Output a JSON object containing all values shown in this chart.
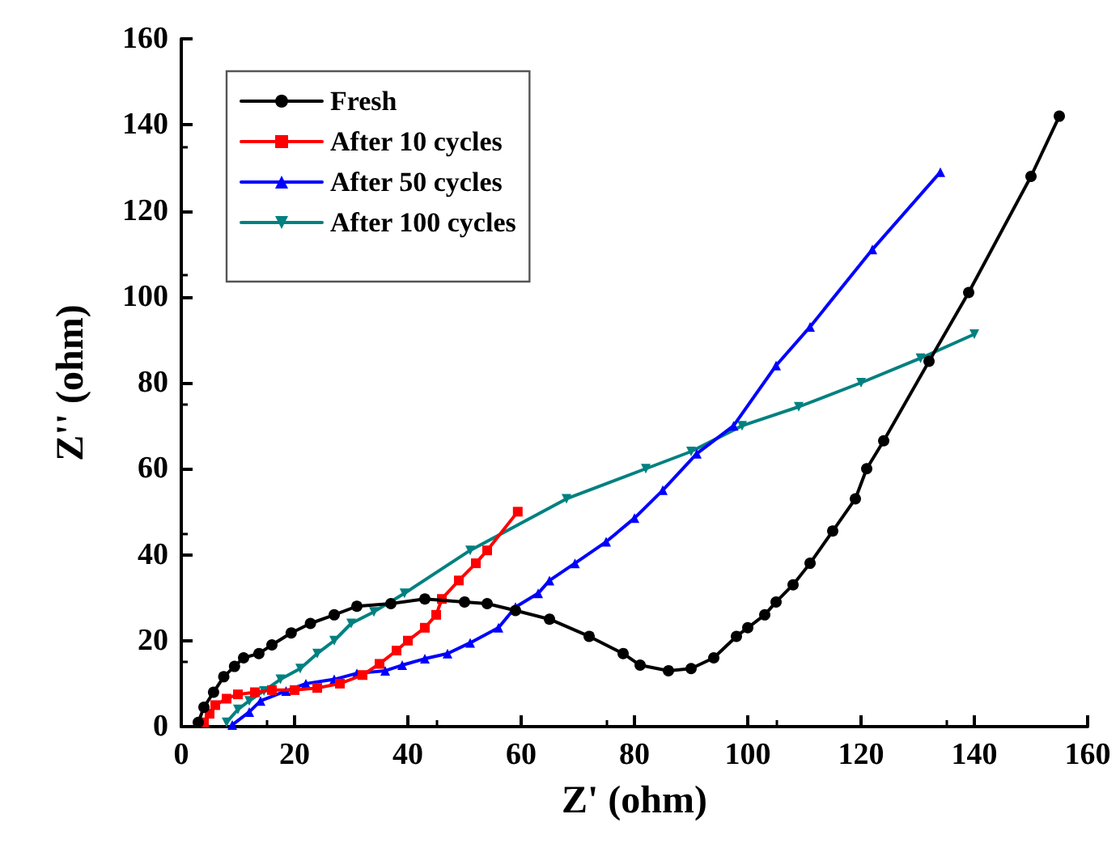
{
  "chart_data": {
    "type": "line",
    "xlabel": "Z' (ohm)",
    "ylabel": "Z'' (ohm)",
    "xlim": [
      0,
      160
    ],
    "ylim": [
      0,
      160
    ],
    "xticks": [
      0,
      20,
      40,
      60,
      80,
      100,
      120,
      140,
      160
    ],
    "yticks": [
      0,
      20,
      40,
      60,
      80,
      100,
      120,
      140,
      160
    ],
    "grid": false,
    "legend": "top left",
    "line_style": "solid",
    "series": [
      {
        "name": "Fresh",
        "color": "#000000",
        "marker": "circle",
        "x": [
          3,
          4,
          5.7,
          7.5,
          9.4,
          11,
          13.7,
          16,
          19.4,
          22.8,
          27,
          31,
          37,
          43,
          50,
          54,
          59,
          65,
          72,
          78,
          81,
          86,
          90,
          94,
          98,
          100,
          103,
          105,
          108,
          111,
          115,
          119,
          121,
          124,
          132,
          139,
          150,
          155
        ],
        "values": [
          1,
          4.5,
          8,
          11.6,
          14,
          16,
          17,
          19,
          21.8,
          24,
          26,
          28,
          28.6,
          29.7,
          29,
          28.6,
          27,
          25,
          21,
          17,
          14.3,
          13,
          13.5,
          16,
          21,
          23,
          26,
          29,
          33,
          38,
          45.5,
          53,
          60,
          66.5,
          85,
          101,
          128,
          142
        ]
      },
      {
        "name": "After 10 cycles",
        "color": "#ff0000",
        "marker": "square",
        "x": [
          4,
          5,
          6,
          8,
          10,
          13,
          16,
          20,
          24,
          28,
          32,
          35,
          38,
          40,
          43,
          45,
          46,
          49,
          52,
          54,
          59.4
        ],
        "values": [
          1,
          3,
          5,
          6.5,
          7.5,
          8,
          8.5,
          8.5,
          9,
          10,
          12,
          14.6,
          17.7,
          20,
          23,
          26,
          29.7,
          34,
          38,
          41,
          50
        ]
      },
      {
        "name": "After 50 cycles",
        "color": "#0000ff",
        "marker": "triangle",
        "x": [
          9,
          12,
          14,
          18.5,
          22,
          27,
          31,
          36,
          39,
          43,
          47,
          51,
          56,
          59,
          63,
          65,
          69.5,
          75,
          80,
          85,
          91,
          97.5,
          105,
          111,
          122,
          134
        ],
        "values": [
          0.4,
          3.4,
          6,
          8.3,
          10,
          11,
          12.4,
          13,
          14.3,
          15.8,
          17,
          19.5,
          23,
          27.8,
          31,
          34,
          38,
          43,
          48.5,
          55,
          63.5,
          70,
          84,
          93,
          111,
          129
        ]
      },
      {
        "name": "After 100 cycles",
        "color": "#008080",
        "marker": "triangle-down",
        "x": [
          8,
          10,
          12,
          14.6,
          17.5,
          21,
          24,
          27,
          30,
          34,
          39.4,
          51,
          68,
          82,
          90,
          99,
          109,
          120,
          130.5,
          140
        ],
        "values": [
          1,
          4,
          6,
          8.3,
          11,
          13.5,
          17,
          20,
          24,
          26.7,
          31,
          41,
          53,
          60,
          64,
          70,
          74.4,
          80,
          85.7,
          91.3
        ]
      }
    ]
  }
}
